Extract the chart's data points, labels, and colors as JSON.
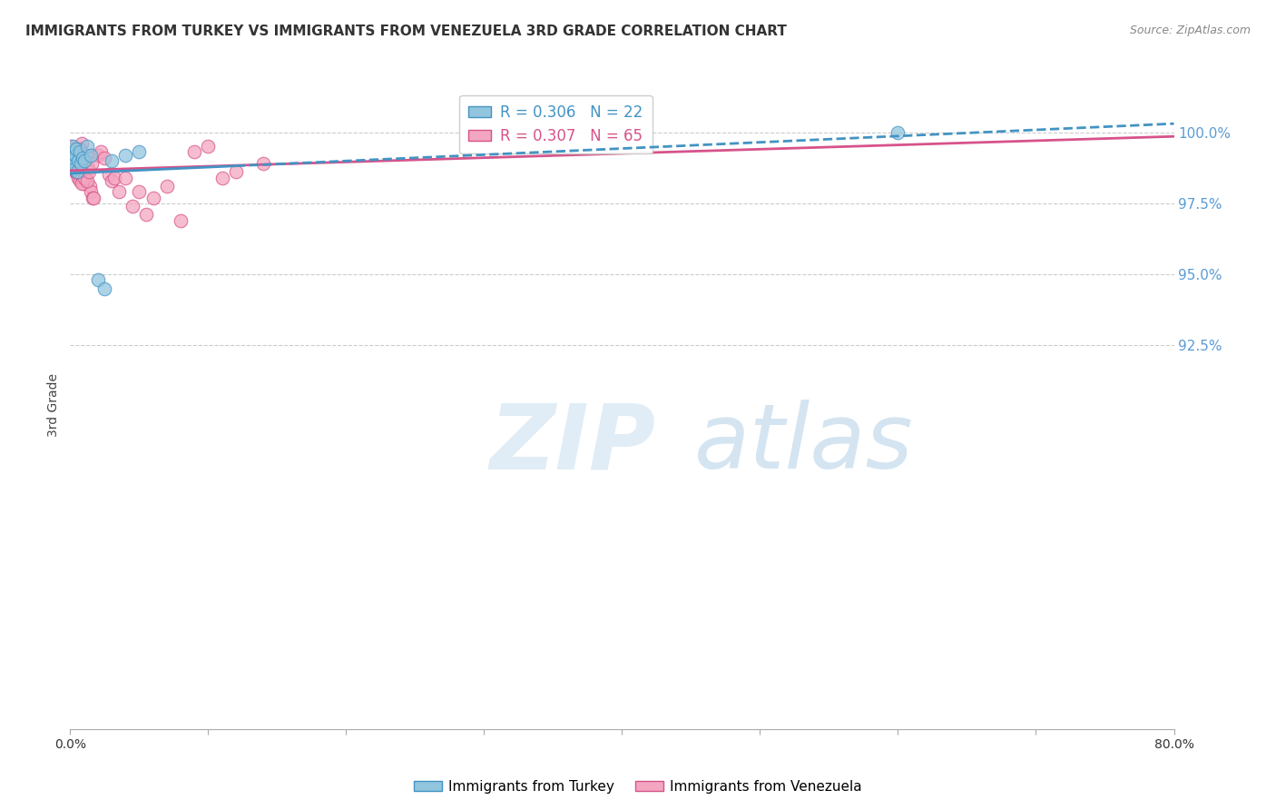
{
  "title": "IMMIGRANTS FROM TURKEY VS IMMIGRANTS FROM VENEZUELA 3RD GRADE CORRELATION CHART",
  "source": "Source: ZipAtlas.com",
  "ylabel": "3rd Grade",
  "blue_color": "#92c5de",
  "pink_color": "#f4a6c0",
  "trend_blue": "#4393c3",
  "trend_pink": "#d6538a",
  "legend_R_blue": "R = 0.306",
  "legend_N_blue": "N = 22",
  "legend_R_pink": "R = 0.307",
  "legend_N_pink": "N = 65",
  "xlim": [
    0.0,
    80.0
  ],
  "ylim": [
    79.0,
    101.8
  ],
  "right_yticks": [
    100.0,
    97.5,
    95.0,
    92.5
  ],
  "turkey_x": [
    0.05,
    0.1,
    0.15,
    0.2,
    0.25,
    0.3,
    0.35,
    0.45,
    0.5,
    0.6,
    0.7,
    0.8,
    0.9,
    1.0,
    1.2,
    1.5,
    2.0,
    2.5,
    3.0,
    4.0,
    5.0,
    60.0
  ],
  "turkey_y": [
    99.1,
    98.8,
    99.3,
    99.5,
    99.0,
    98.7,
    99.2,
    99.4,
    98.6,
    99.0,
    99.3,
    98.9,
    99.1,
    99.0,
    99.5,
    99.2,
    94.8,
    94.5,
    99.0,
    99.2,
    99.3,
    100.0
  ],
  "venezuela_x": [
    0.05,
    0.08,
    0.1,
    0.12,
    0.15,
    0.18,
    0.2,
    0.22,
    0.25,
    0.28,
    0.3,
    0.32,
    0.35,
    0.38,
    0.4,
    0.45,
    0.48,
    0.5,
    0.52,
    0.55,
    0.6,
    0.65,
    0.7,
    0.75,
    0.8,
    0.85,
    0.9,
    0.95,
    1.0,
    1.1,
    1.2,
    1.3,
    1.4,
    1.5,
    1.6,
    1.7,
    2.0,
    2.2,
    2.5,
    2.8,
    3.0,
    3.2,
    3.5,
    4.0,
    4.5,
    5.0,
    5.5,
    6.0,
    7.0,
    8.0,
    9.0,
    10.0,
    11.0,
    12.0,
    14.0,
    0.42,
    0.62,
    0.72,
    0.82,
    0.92,
    1.05,
    1.15,
    1.25,
    1.35,
    1.55
  ],
  "venezuela_y": [
    99.5,
    99.2,
    99.3,
    99.1,
    99.4,
    98.9,
    99.2,
    98.8,
    99.1,
    99.3,
    98.7,
    99.0,
    98.6,
    99.2,
    99.0,
    98.8,
    99.1,
    99.2,
    98.5,
    98.4,
    98.7,
    99.3,
    98.3,
    99.2,
    99.2,
    99.6,
    98.4,
    98.2,
    98.5,
    98.3,
    98.8,
    98.7,
    98.1,
    97.9,
    97.7,
    97.7,
    99.2,
    99.3,
    99.1,
    98.5,
    98.3,
    98.4,
    97.9,
    98.4,
    97.4,
    97.9,
    97.1,
    97.7,
    98.1,
    96.9,
    99.3,
    99.5,
    98.4,
    98.6,
    98.9,
    98.6,
    98.9,
    99.4,
    98.2,
    99.0,
    98.4,
    99.2,
    98.3,
    98.6,
    98.9
  ],
  "trend_blue_x0": 0.0,
  "trend_blue_y0": 98.55,
  "trend_blue_x1": 80.0,
  "trend_blue_y1": 100.3,
  "trend_pink_x0": 0.0,
  "trend_pink_y0": 98.65,
  "trend_pink_x1": 80.0,
  "trend_pink_y1": 99.85,
  "solid_end_x": 12.0,
  "dashed_start_x": 12.0
}
